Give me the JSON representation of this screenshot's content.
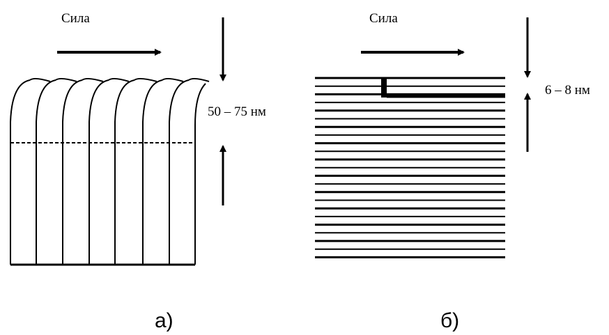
{
  "panels": [
    {
      "force_label": "Сила",
      "dimension_label": "50 – 75 нм",
      "caption": "а)"
    },
    {
      "force_label": "Сила",
      "dimension_label": "6 – 8 нм",
      "caption": "б)"
    }
  ]
}
